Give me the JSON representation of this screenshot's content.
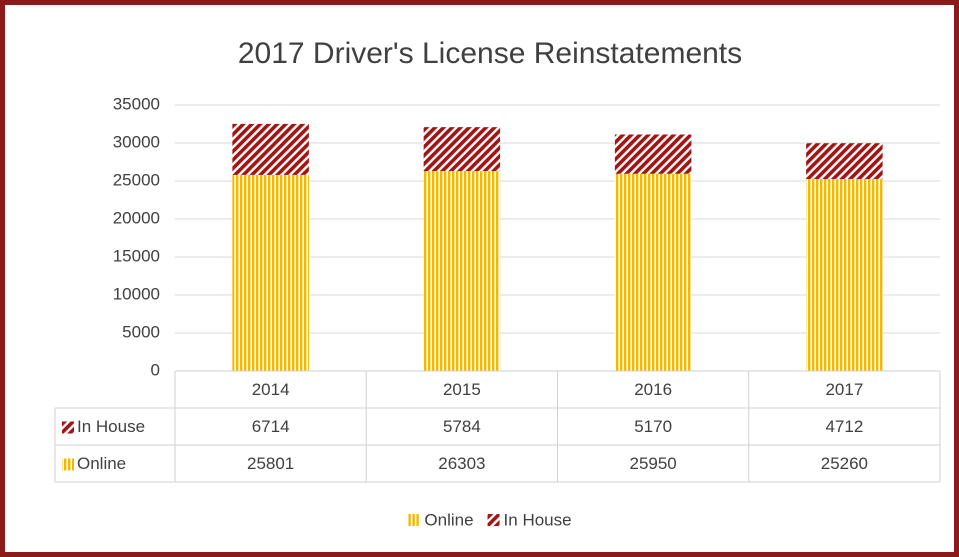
{
  "chart_data": {
    "type": "stacked_bar",
    "title": "2017 Driver's License Reinstatements",
    "categories": [
      "2014",
      "2015",
      "2016",
      "2017"
    ],
    "series": [
      {
        "name": "Online",
        "color": "#f2b900",
        "pattern": "vertical",
        "values": [
          25801,
          26303,
          25950,
          25260
        ]
      },
      {
        "name": "In House",
        "color": "#a31515",
        "pattern": "diagonal",
        "values": [
          6714,
          5784,
          5170,
          4712
        ]
      }
    ],
    "ylim": [
      0,
      35000
    ],
    "yticks": [
      0,
      5000,
      10000,
      15000,
      20000,
      25000,
      30000,
      35000
    ],
    "grid": true,
    "data_table": true,
    "legend": "bottom"
  }
}
